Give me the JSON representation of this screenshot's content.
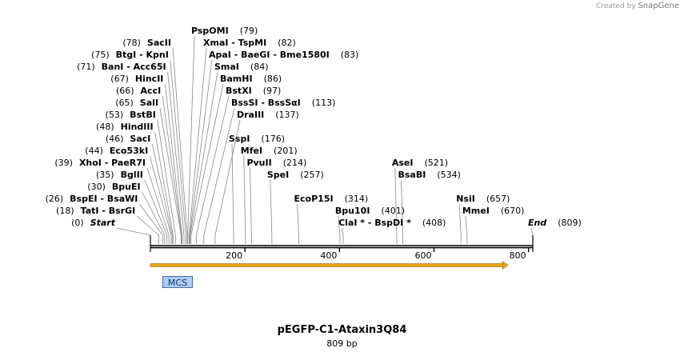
{
  "credit": {
    "prefix": "Created by",
    "brand": "SnapGene"
  },
  "plasmid": {
    "name": "pEGFP-C1-Ataxin3Q84",
    "length_label": "809 bp",
    "length": 809
  },
  "axis": {
    "ticks": [
      200,
      400,
      600,
      800
    ]
  },
  "feature": {
    "label": "MCS",
    "start": 0,
    "end": 757,
    "color": "#e8a317"
  },
  "sites": [
    {
      "row": 0,
      "parts": [
        "Start"
      ],
      "pos": 0,
      "label": "(0)",
      "side": "left",
      "italic": true
    },
    {
      "row": 1,
      "parts": [
        "TatI",
        "BsrGI"
      ],
      "pos": 18,
      "label": "(18)",
      "side": "left"
    },
    {
      "row": 2,
      "parts": [
        "BspEI",
        "BsaWI"
      ],
      "pos": 26,
      "label": "(26)",
      "side": "left"
    },
    {
      "row": 3,
      "parts": [
        "BpuEI"
      ],
      "pos": 30,
      "label": "(30)",
      "side": "left"
    },
    {
      "row": 4,
      "parts": [
        "BglII"
      ],
      "pos": 35,
      "label": "(35)",
      "side": "left"
    },
    {
      "row": 5,
      "parts": [
        "XhoI",
        "PaeR7I"
      ],
      "pos": 39,
      "label": "(39)",
      "side": "left"
    },
    {
      "row": 6,
      "parts": [
        "Eco53kI"
      ],
      "pos": 44,
      "label": "(44)",
      "side": "left"
    },
    {
      "row": 7,
      "parts": [
        "SacI"
      ],
      "pos": 46,
      "label": "(46)",
      "side": "left"
    },
    {
      "row": 8,
      "parts": [
        "HindIII"
      ],
      "pos": 48,
      "label": "(48)",
      "side": "left"
    },
    {
      "row": 9,
      "parts": [
        "BstBI"
      ],
      "pos": 53,
      "label": "(53)",
      "side": "left"
    },
    {
      "row": 10,
      "parts": [
        "SalI"
      ],
      "pos": 65,
      "label": "(65)",
      "side": "left"
    },
    {
      "row": 11,
      "parts": [
        "AccI"
      ],
      "pos": 66,
      "label": "(66)",
      "side": "left"
    },
    {
      "row": 12,
      "parts": [
        "HincII"
      ],
      "pos": 67,
      "label": "(67)",
      "side": "left"
    },
    {
      "row": 13,
      "parts": [
        "BanI",
        "Acc65I"
      ],
      "pos": 71,
      "label": "(71)",
      "side": "left"
    },
    {
      "row": 14,
      "parts": [
        "BtgI",
        "KpnI"
      ],
      "pos": 75,
      "label": "(75)",
      "side": "left"
    },
    {
      "row": 15,
      "parts": [
        "SacII"
      ],
      "pos": 78,
      "label": "(78)",
      "side": "left"
    },
    {
      "row": 16,
      "parts": [
        "PspOMI"
      ],
      "pos": 79,
      "label": "(79)",
      "side": "right"
    },
    {
      "row": 15,
      "parts": [
        "XmaI",
        "TspMI"
      ],
      "pos": 82,
      "label": "(82)",
      "side": "right"
    },
    {
      "row": 14,
      "parts": [
        "ApaI",
        "BaeGI",
        "Bme1580I"
      ],
      "pos": 83,
      "label": "(83)",
      "side": "right"
    },
    {
      "row": 13,
      "parts": [
        "SmaI"
      ],
      "pos": 84,
      "label": "(84)",
      "side": "right"
    },
    {
      "row": 12,
      "parts": [
        "BamHI"
      ],
      "pos": 86,
      "label": "(86)",
      "side": "right"
    },
    {
      "row": 11,
      "parts": [
        "BstXI"
      ],
      "pos": 97,
      "label": "(97)",
      "side": "right"
    },
    {
      "row": 10,
      "parts": [
        "BssSI",
        "BssSαI"
      ],
      "pos": 113,
      "label": "(113)",
      "side": "right"
    },
    {
      "row": 9,
      "parts": [
        "DraIII"
      ],
      "pos": 137,
      "label": "(137)",
      "side": "right"
    },
    {
      "row": 7,
      "parts": [
        "SspI"
      ],
      "pos": 176,
      "label": "(176)",
      "side": "right"
    },
    {
      "row": 6,
      "parts": [
        "MfeI"
      ],
      "pos": 201,
      "label": "(201)",
      "side": "right"
    },
    {
      "row": 5,
      "parts": [
        "PvuII"
      ],
      "pos": 214,
      "label": "(214)",
      "side": "right"
    },
    {
      "row": 4,
      "parts": [
        "SpeI"
      ],
      "pos": 257,
      "label": "(257)",
      "side": "right"
    },
    {
      "row": 2,
      "parts": [
        "EcoP15I"
      ],
      "pos": 314,
      "label": "(314)",
      "side": "right"
    },
    {
      "row": 1,
      "parts": [
        "Bpu10I"
      ],
      "pos": 401,
      "label": "(401)",
      "side": "right"
    },
    {
      "row": 0,
      "parts": [
        "ClaI *",
        "BspDI *"
      ],
      "pos": 408,
      "label": "(408)",
      "side": "right"
    },
    {
      "row": 5,
      "parts": [
        "AseI"
      ],
      "pos": 521,
      "label": "(521)",
      "side": "right"
    },
    {
      "row": 4,
      "parts": [
        "BsaBI"
      ],
      "pos": 534,
      "label": "(534)",
      "side": "right"
    },
    {
      "row": 2,
      "parts": [
        "NsiI"
      ],
      "pos": 657,
      "label": "(657)",
      "side": "right"
    },
    {
      "row": 1,
      "parts": [
        "MmeI"
      ],
      "pos": 670,
      "label": "(670)",
      "side": "right"
    },
    {
      "row": 0,
      "parts": [
        "End"
      ],
      "pos": 809,
      "label": "(809)",
      "side": "right",
      "italic": true
    }
  ]
}
